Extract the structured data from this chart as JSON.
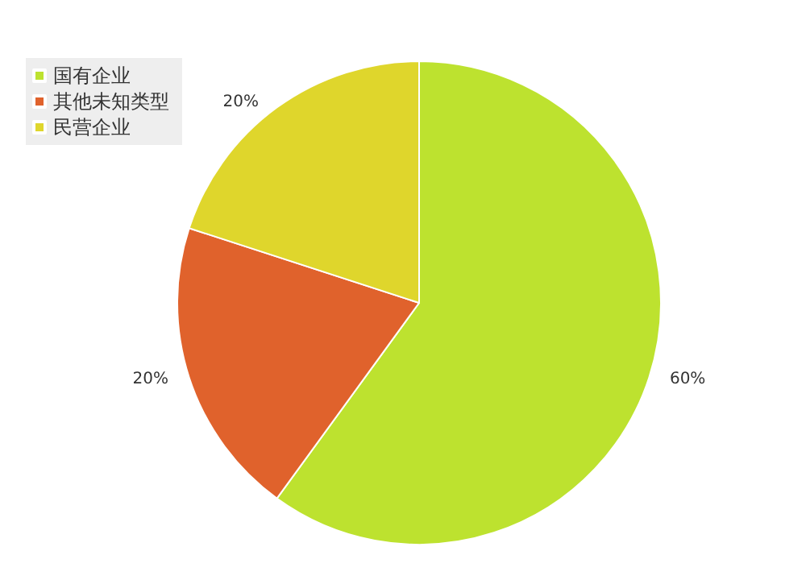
{
  "chart_data": {
    "type": "pie",
    "categories": [
      "国有企业",
      "其他未知类型",
      "民营企业"
    ],
    "values": [
      60,
      20,
      20
    ],
    "value_labels": [
      "60%",
      "20%",
      "20%"
    ],
    "colors": [
      "#bde22f",
      "#e0622c",
      "#dfd62c"
    ],
    "legend": "top left"
  }
}
